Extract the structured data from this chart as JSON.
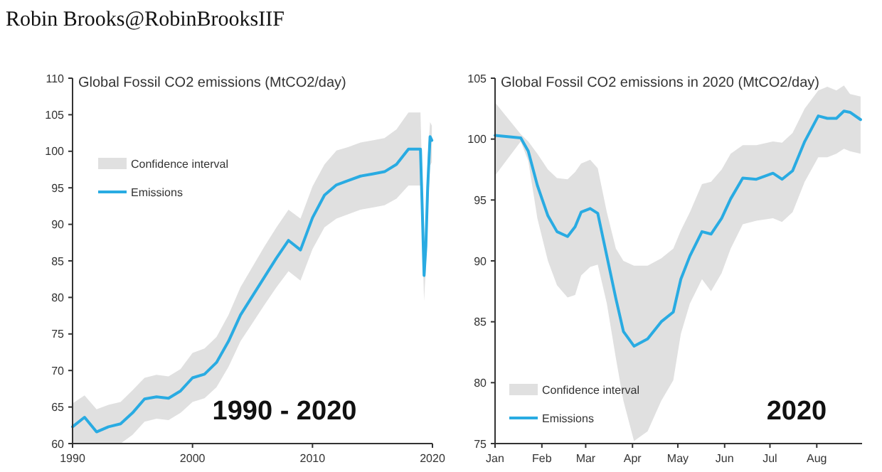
{
  "chart_data": [
    {
      "type": "line",
      "title": "Global Fossil CO2 emissions (MtCO2/day)",
      "annotations": [
        "Robin Brooks@RobinBrooksIIF",
        "Confidence interval",
        "1990 - 2020"
      ],
      "legend": "top left",
      "grid": false,
      "x": [
        1990,
        1991,
        1992,
        1993,
        1994,
        1995,
        1996,
        1997,
        1998,
        1999,
        2000,
        2001,
        2002,
        2003,
        2004,
        2005,
        2006,
        2007,
        2008,
        2009,
        2010,
        2011,
        2012,
        2013,
        2014,
        2015,
        2016,
        2017,
        2018,
        2019,
        2019.15,
        2019.3,
        2019.45,
        2019.6,
        2019.8,
        2019.95
      ],
      "xlim": [
        1990,
        2020
      ],
      "xticks": [
        1990,
        2000,
        2010,
        2020
      ],
      "ylim": [
        60,
        110
      ],
      "yticks": [
        60,
        65,
        70,
        75,
        80,
        85,
        90,
        95,
        100,
        105,
        110
      ],
      "series": [
        {
          "name": "Emissions",
          "color": "#29abe2",
          "values": [
            62.3,
            63.6,
            61.6,
            62.3,
            62.7,
            64.2,
            66.1,
            66.4,
            66.2,
            67.2,
            69,
            69.5,
            71.1,
            74,
            77.6,
            80.2,
            82.8,
            85.4,
            87.8,
            86.5,
            90.9,
            94,
            95.4,
            96,
            96.6,
            96.9,
            97.2,
            98.2,
            100.3,
            100.3,
            92,
            83,
            87,
            95,
            102,
            101.5
          ],
          "lower": [
            60,
            60,
            60,
            60,
            60,
            61.2,
            63,
            63.4,
            63.2,
            64.2,
            65.7,
            66.2,
            67.7,
            70.5,
            74,
            76.5,
            79,
            81.4,
            83.6,
            82.3,
            86.6,
            89.6,
            90.8,
            91.4,
            92,
            92.3,
            92.6,
            93.5,
            95.3,
            95.3,
            88,
            79.5,
            84,
            91,
            98,
            98.5
          ],
          "upper": [
            65.5,
            66.6,
            64.7,
            65.3,
            65.7,
            67.3,
            69,
            69.4,
            69.2,
            70.2,
            72.4,
            73,
            74.6,
            77.6,
            81.4,
            84.2,
            87,
            89.6,
            92,
            90.8,
            95.2,
            98.2,
            100.1,
            100.6,
            101.2,
            101.5,
            101.8,
            103,
            105.3,
            105.3,
            96,
            86,
            91,
            99,
            104,
            103.5
          ]
        }
      ]
    },
    {
      "type": "line",
      "title": "Global Fossil CO2 emissions in 2020 (MtCO2/day)",
      "annotations": [
        "Confidence interval",
        "2020"
      ],
      "legend": "bottom left",
      "grid": false,
      "x": [
        "2020-01-01",
        "2020-01-18",
        "2020-01-23",
        "2020-01-29",
        "2020-02-05",
        "2020-02-11",
        "2020-02-18",
        "2020-02-23",
        "2020-02-27",
        "2020-03-04",
        "2020-03-09",
        "2020-03-15",
        "2020-03-21",
        "2020-03-26",
        "2020-04-02",
        "2020-04-11",
        "2020-04-20",
        "2020-04-28",
        "2020-05-03",
        "2020-05-09",
        "2020-05-17",
        "2020-05-23",
        "2020-05-30",
        "2020-06-05",
        "2020-06-13",
        "2020-06-22",
        "2020-07-03",
        "2020-07-09",
        "2020-07-16",
        "2020-07-24",
        "2020-08-02",
        "2020-08-08",
        "2020-08-14",
        "2020-08-19",
        "2020-08-23",
        "2020-08-30"
      ],
      "xlim": [
        "2020-01-01",
        "2020-08-31"
      ],
      "xticks": [
        {
          "value": "2020-01-01",
          "label": "Jan"
        },
        {
          "value": "2020-02-01",
          "label": "Feb"
        },
        {
          "value": "2020-03-01",
          "label": "Mar"
        },
        {
          "value": "2020-04-01",
          "label": "Apr"
        },
        {
          "value": "2020-05-01",
          "label": "May"
        },
        {
          "value": "2020-06-01",
          "label": "Jun"
        },
        {
          "value": "2020-07-01",
          "label": "Jul"
        },
        {
          "value": "2020-08-01",
          "label": "Aug"
        }
      ],
      "ylim": [
        75,
        105
      ],
      "yticks": [
        75,
        80,
        85,
        90,
        95,
        100,
        105
      ],
      "series": [
        {
          "name": "Emissions",
          "color": "#29abe2",
          "values": [
            100.3,
            100.1,
            99,
            96.2,
            93.7,
            92.4,
            92,
            92.8,
            94,
            94.3,
            93.9,
            90.4,
            86.9,
            84.2,
            83,
            83.6,
            85,
            85.8,
            88.5,
            90.4,
            92.4,
            92.2,
            93.5,
            95.1,
            96.8,
            96.7,
            97.2,
            96.7,
            97.4,
            99.8,
            101.9,
            101.7,
            101.7,
            102.3,
            102.2,
            101.6
          ],
          "lower": [
            97,
            99.8,
            98.2,
            93.5,
            90,
            88,
            87,
            87.2,
            88.8,
            89.5,
            89.7,
            86.5,
            82,
            78.5,
            75.2,
            76,
            78.5,
            80.2,
            84,
            86.5,
            88.5,
            87.5,
            89,
            91,
            93,
            93.3,
            93.5,
            93.2,
            94,
            96.5,
            98.5,
            98.5,
            98.8,
            99.2,
            99,
            98.8
          ],
          "upper": [
            103,
            100.4,
            99.8,
            98.8,
            97.5,
            96.8,
            96.7,
            97.3,
            98,
            98.3,
            97.6,
            94,
            91,
            90,
            89.6,
            89.6,
            90.2,
            91,
            92.5,
            94,
            96.3,
            96.5,
            97.5,
            98.8,
            99.5,
            99.5,
            99.8,
            99.7,
            100.5,
            102.5,
            104,
            104.3,
            104,
            104.4,
            103.7,
            103.5
          ]
        }
      ]
    }
  ]
}
